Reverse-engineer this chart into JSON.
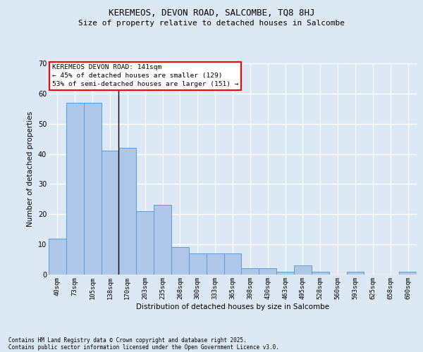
{
  "title1": "KEREMEOS, DEVON ROAD, SALCOMBE, TQ8 8HJ",
  "title2": "Size of property relative to detached houses in Salcombe",
  "xlabel": "Distribution of detached houses by size in Salcombe",
  "ylabel": "Number of detached properties",
  "categories": [
    "40sqm",
    "73sqm",
    "105sqm",
    "138sqm",
    "170sqm",
    "203sqm",
    "235sqm",
    "268sqm",
    "300sqm",
    "333sqm",
    "365sqm",
    "398sqm",
    "430sqm",
    "463sqm",
    "495sqm",
    "528sqm",
    "560sqm",
    "593sqm",
    "625sqm",
    "658sqm",
    "690sqm"
  ],
  "values": [
    12,
    57,
    57,
    41,
    42,
    21,
    23,
    9,
    7,
    7,
    7,
    2,
    2,
    1,
    3,
    1,
    0,
    1,
    0,
    0,
    1
  ],
  "bar_color": "#aec6e8",
  "bar_edge_color": "#5b9bd5",
  "background_color": "#dce9f5",
  "grid_color": "#ffffff",
  "ylim": [
    0,
    70
  ],
  "yticks": [
    0,
    10,
    20,
    30,
    40,
    50,
    60,
    70
  ],
  "annotation_box_text": "KEREMEOS DEVON ROAD: 141sqm\n← 45% of detached houses are smaller (129)\n53% of semi-detached houses are larger (151) →",
  "footer1": "Contains HM Land Registry data © Crown copyright and database right 2025.",
  "footer2": "Contains public sector information licensed under the Open Government Licence v3.0."
}
